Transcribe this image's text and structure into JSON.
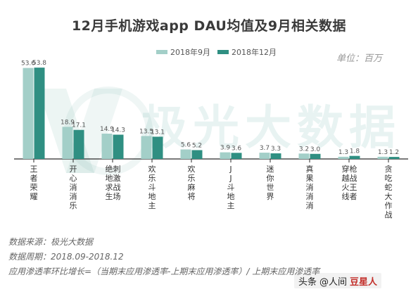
{
  "chart_data": {
    "type": "bar",
    "title": "12月手机游戏app DAU均值及9月相关数据",
    "unit": "单位：百万",
    "categories": [
      "王者荣耀",
      "开心消消乐",
      "绝地求生 刺激战场",
      "欢乐斗地主",
      "欢乐麻将",
      "JJ斗地主",
      "迷你世界",
      "真果消消消",
      "穿越火线 枪战王者",
      "贪吃蛇大作战"
    ],
    "series": [
      {
        "name": "2018年9月",
        "values": [
          53.6,
          18.9,
          14.9,
          13.5,
          5.6,
          3.9,
          3.7,
          3.2,
          1.3,
          1.3
        ]
      },
      {
        "name": "2018年12月",
        "values": [
          53.8,
          17.1,
          14.3,
          13.1,
          5.2,
          3.6,
          3.3,
          3.0,
          1.8,
          1.2
        ]
      }
    ],
    "ylim": [
      0,
      58
    ],
    "legend_position": "top",
    "grid": false
  },
  "colors": {
    "series_sep": "#a3cfc8",
    "series_dec": "#2f8f82",
    "axis": "#2a2a2a"
  },
  "watermark_text": "极光大数据",
  "notes": [
    "数据来源：极光大数据",
    "数据周期：2018.09-2018.12",
    "应用渗透率环比增长=（当期末应用渗透率-上期末应用渗透率）/ 上期末应用渗透率"
  ],
  "source_badge": {
    "prefix": "头条",
    "handle": "@人间",
    "suffix": "豆星人"
  }
}
